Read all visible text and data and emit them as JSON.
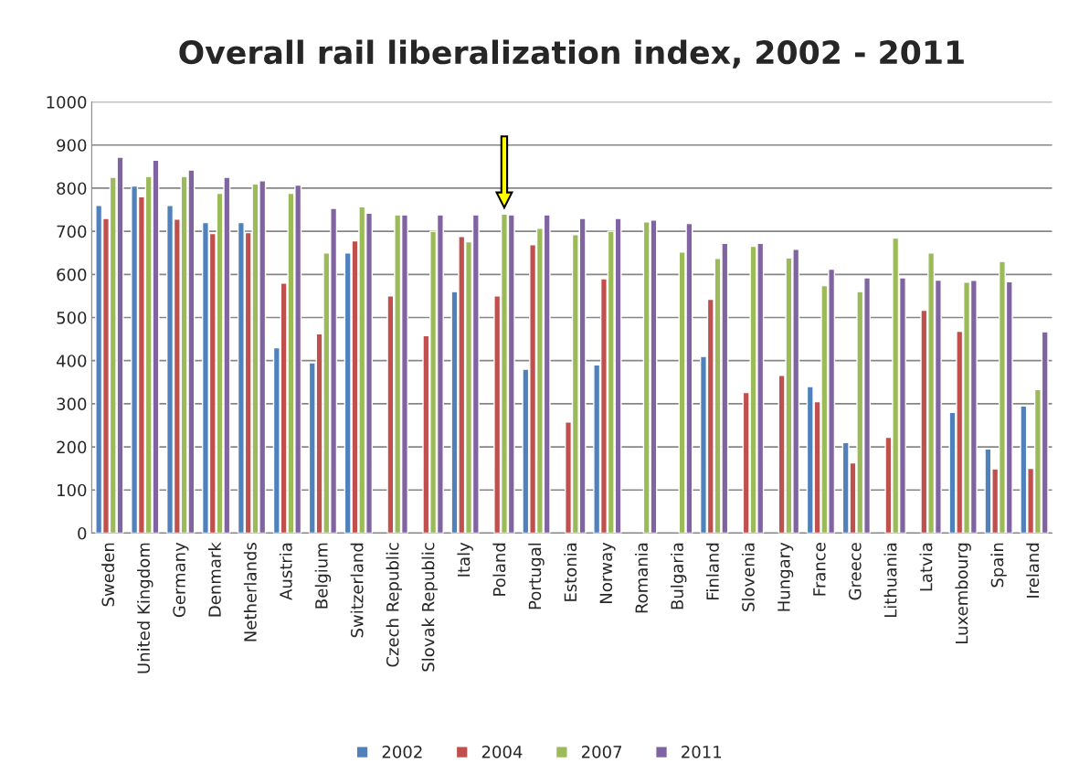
{
  "chart_data": {
    "type": "bar",
    "title": "Overall rail liberalization index, 2002 - 2011",
    "categories": [
      "Sweden",
      "United Kingdom",
      "Germany",
      "Denmark",
      "Netherlands",
      "Austria",
      "Belgium",
      "Switzerland",
      "Czech Republic",
      "Slovak Republic",
      "Italy",
      "Poland",
      "Portugal",
      "Estonia",
      "Norway",
      "Romania",
      "Bulgaria",
      "Finland",
      "Slovenia",
      "Hungary",
      "France",
      "Greece",
      "Lithuania",
      "Latvia",
      "Luxembourg",
      "Spain",
      "Ireland"
    ],
    "series": [
      {
        "name": "2002",
        "color": "#4f81bd",
        "values": [
          760,
          805,
          760,
          720,
          720,
          430,
          395,
          650,
          null,
          null,
          560,
          null,
          380,
          null,
          390,
          null,
          null,
          410,
          null,
          null,
          340,
          210,
          null,
          null,
          280,
          195,
          295
        ]
      },
      {
        "name": "2004",
        "color": "#c0504d",
        "values": [
          730,
          780,
          728,
          695,
          697,
          580,
          462,
          678,
          550,
          458,
          688,
          550,
          669,
          258,
          590,
          null,
          null,
          542,
          326,
          366,
          305,
          163,
          222,
          517,
          468,
          149,
          150
        ]
      },
      {
        "name": "2007",
        "color": "#9bbb59",
        "values": [
          825,
          827,
          827,
          788,
          810,
          788,
          650,
          757,
          738,
          700,
          676,
          740,
          707,
          692,
          700,
          722,
          652,
          637,
          665,
          638,
          574,
          560,
          684,
          650,
          582,
          630,
          333
        ]
      },
      {
        "name": "2011",
        "color": "#8064a2",
        "values": [
          872,
          865,
          842,
          825,
          817,
          807,
          753,
          742,
          738,
          738,
          738,
          738,
          738,
          730,
          730,
          726,
          718,
          672,
          672,
          658,
          612,
          592,
          592,
          587,
          586,
          583,
          467
        ]
      }
    ],
    "ylim": [
      0,
      1000
    ],
    "yticks": [
      0,
      100,
      200,
      300,
      400,
      500,
      600,
      700,
      800,
      900,
      1000
    ],
    "grid": "y",
    "legend": "bottom"
  }
}
